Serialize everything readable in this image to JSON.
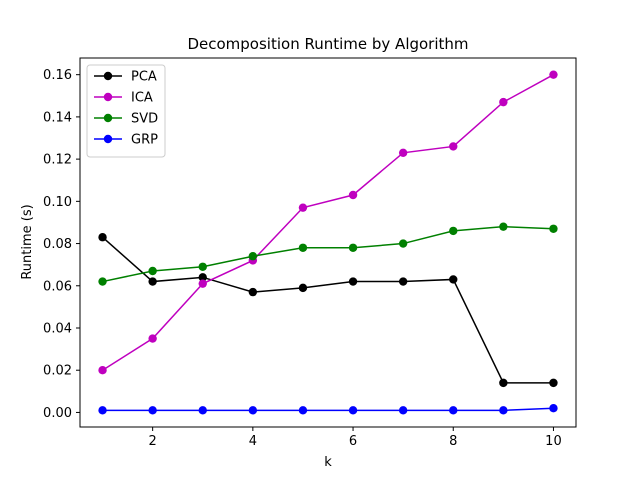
{
  "chart_data": {
    "type": "line",
    "title": "Decomposition Runtime by Algorithm",
    "xlabel": "k",
    "ylabel": "Runtime (s)",
    "x": [
      1,
      2,
      3,
      4,
      5,
      6,
      7,
      8,
      9,
      10
    ],
    "xlim": [
      0.55,
      10.45
    ],
    "ylim": [
      -0.0069,
      0.1679
    ],
    "xticks": [
      2,
      4,
      6,
      8,
      10
    ],
    "xtick_labels": [
      "2",
      "4",
      "6",
      "8",
      "10"
    ],
    "yticks": [
      0.0,
      0.02,
      0.04,
      0.06,
      0.08,
      0.1,
      0.12,
      0.14,
      0.16
    ],
    "ytick_labels": [
      "0.00",
      "0.02",
      "0.04",
      "0.06",
      "0.08",
      "0.10",
      "0.12",
      "0.14",
      "0.16"
    ],
    "grid": false,
    "legend_position": "upper-left",
    "series": [
      {
        "name": "PCA",
        "color": "#000000",
        "values": [
          0.083,
          0.062,
          0.064,
          0.057,
          0.059,
          0.062,
          0.062,
          0.063,
          0.014,
          0.014
        ]
      },
      {
        "name": "ICA",
        "color": "#bf00bf",
        "values": [
          0.02,
          0.035,
          0.061,
          0.072,
          0.097,
          0.103,
          0.123,
          0.126,
          0.147,
          0.16
        ]
      },
      {
        "name": "SVD",
        "color": "#008000",
        "values": [
          0.062,
          0.067,
          0.069,
          0.074,
          0.078,
          0.078,
          0.08,
          0.086,
          0.088,
          0.087
        ]
      },
      {
        "name": "GRP",
        "color": "#0000ff",
        "values": [
          0.001,
          0.001,
          0.001,
          0.001,
          0.001,
          0.001,
          0.001,
          0.001,
          0.001,
          0.002
        ]
      }
    ]
  }
}
